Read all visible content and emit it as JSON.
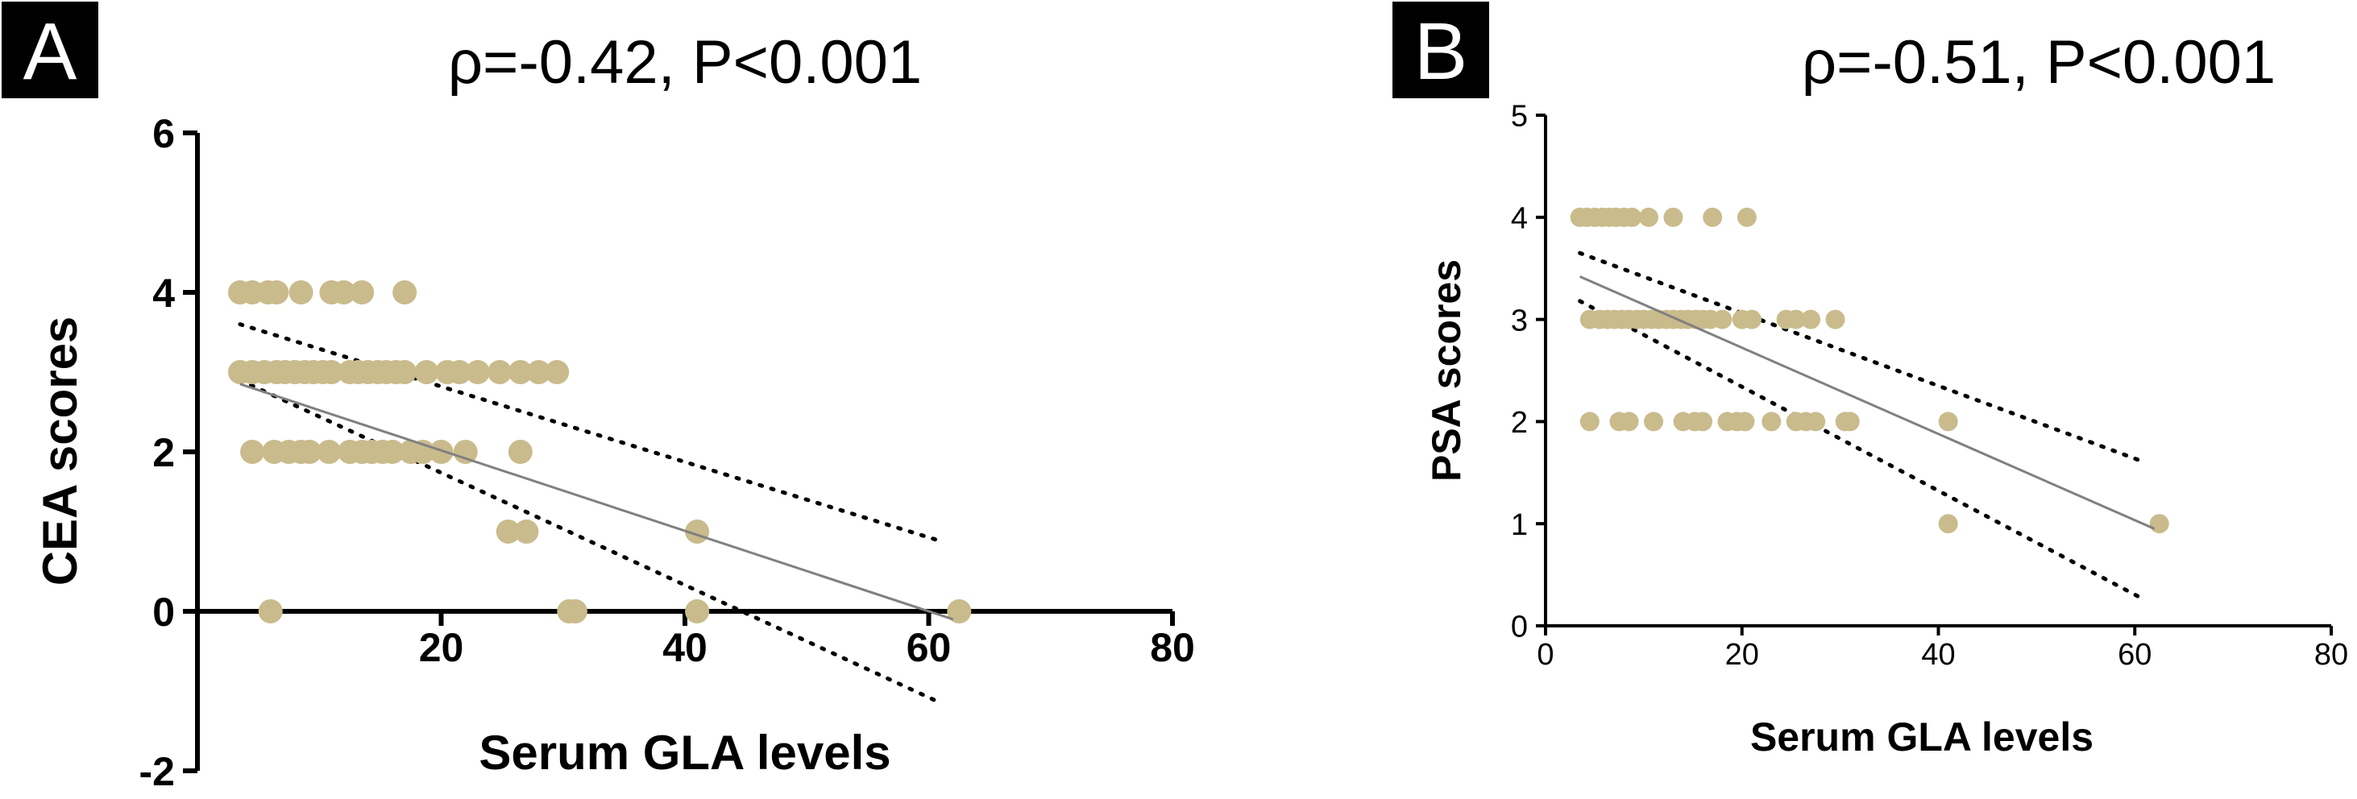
{
  "colors": {
    "point": "#C9BB8C",
    "fit_line": "#808080",
    "ci_line": "#000000",
    "axis": "#000000",
    "panel_label_bg": "#000000",
    "panel_label_text": "#FFFFFF"
  },
  "chart_data": [
    {
      "type": "scatter",
      "panel_label": "A",
      "title": "ρ=-0.42, P<0.001",
      "xlabel": "Serum GLA levels",
      "ylabel": "CEA scores",
      "xlim": [
        0,
        80
      ],
      "ylim": [
        -2,
        6
      ],
      "xticks": [
        20,
        40,
        60,
        80
      ],
      "yticks": [
        -2,
        0,
        2,
        4,
        6
      ],
      "grid": false,
      "legend": "none",
      "points": [
        [
          3.5,
          4
        ],
        [
          4.5,
          4
        ],
        [
          5.8,
          4
        ],
        [
          6.5,
          4
        ],
        [
          8.5,
          4
        ],
        [
          11,
          4
        ],
        [
          12,
          4
        ],
        [
          13.5,
          4
        ],
        [
          17,
          4
        ],
        [
          3.5,
          3
        ],
        [
          4.5,
          3
        ],
        [
          5.5,
          3
        ],
        [
          6.5,
          3
        ],
        [
          7.2,
          3
        ],
        [
          8,
          3
        ],
        [
          8.8,
          3
        ],
        [
          9.5,
          3
        ],
        [
          10.3,
          3
        ],
        [
          11,
          3
        ],
        [
          12.5,
          3
        ],
        [
          13.2,
          3
        ],
        [
          14,
          3
        ],
        [
          14.8,
          3
        ],
        [
          15.5,
          3
        ],
        [
          16.3,
          3
        ],
        [
          17,
          3
        ],
        [
          18.8,
          3
        ],
        [
          20.5,
          3
        ],
        [
          21.5,
          3
        ],
        [
          23,
          3
        ],
        [
          24.8,
          3
        ],
        [
          26.5,
          3
        ],
        [
          28,
          3
        ],
        [
          29.5,
          3
        ],
        [
          4.5,
          2
        ],
        [
          6.3,
          2
        ],
        [
          7.5,
          2
        ],
        [
          8.5,
          2
        ],
        [
          9.2,
          2
        ],
        [
          10.8,
          2
        ],
        [
          12.5,
          2
        ],
        [
          13.5,
          2
        ],
        [
          14.3,
          2
        ],
        [
          15.2,
          2
        ],
        [
          16,
          2
        ],
        [
          17.5,
          2
        ],
        [
          18.5,
          2
        ],
        [
          20,
          2
        ],
        [
          22,
          2
        ],
        [
          26.5,
          2
        ],
        [
          25.5,
          1
        ],
        [
          27,
          1
        ],
        [
          41,
          1
        ],
        [
          6,
          0
        ],
        [
          30.5,
          0
        ],
        [
          31,
          0
        ],
        [
          41,
          0
        ],
        [
          62.5,
          0
        ]
      ],
      "fit_line": {
        "x": [
          3.5,
          62
        ],
        "y": [
          2.85,
          -0.1
        ]
      },
      "ci_upper": {
        "x": [
          3.5,
          61
        ],
        "y": [
          3.6,
          0.88
        ]
      },
      "ci_lower": {
        "x": [
          3.5,
          61
        ],
        "y": [
          2.9,
          -1.15
        ]
      }
    },
    {
      "type": "scatter",
      "panel_label": "B",
      "title": "ρ=-0.51, P<0.001",
      "xlabel": "Serum GLA levels",
      "ylabel": "PSA scores",
      "xlim": [
        0,
        80
      ],
      "ylim": [
        0,
        5
      ],
      "xticks": [
        0,
        20,
        40,
        60,
        80
      ],
      "yticks": [
        0,
        1,
        2,
        3,
        4,
        5
      ],
      "grid": false,
      "legend": "none",
      "points": [
        [
          3.5,
          4
        ],
        [
          4.2,
          4
        ],
        [
          5,
          4
        ],
        [
          5.8,
          4
        ],
        [
          6.5,
          4
        ],
        [
          7.2,
          4
        ],
        [
          8,
          4
        ],
        [
          8.8,
          4
        ],
        [
          10.5,
          4
        ],
        [
          13,
          4
        ],
        [
          17,
          4
        ],
        [
          20.5,
          4
        ],
        [
          4.5,
          3
        ],
        [
          5.5,
          3
        ],
        [
          6.3,
          3
        ],
        [
          7,
          3
        ],
        [
          7.8,
          3
        ],
        [
          8.5,
          3
        ],
        [
          9.3,
          3
        ],
        [
          10,
          3
        ],
        [
          10.8,
          3
        ],
        [
          11.5,
          3
        ],
        [
          12.3,
          3
        ],
        [
          13,
          3
        ],
        [
          13.8,
          3
        ],
        [
          14.5,
          3
        ],
        [
          15.3,
          3
        ],
        [
          16,
          3
        ],
        [
          16.8,
          3
        ],
        [
          18,
          3
        ],
        [
          20,
          3
        ],
        [
          21,
          3
        ],
        [
          24.5,
          3
        ],
        [
          25.5,
          3
        ],
        [
          27,
          3
        ],
        [
          29.5,
          3
        ],
        [
          4.5,
          2
        ],
        [
          7.5,
          2
        ],
        [
          8.5,
          2
        ],
        [
          11,
          2
        ],
        [
          14,
          2
        ],
        [
          15.2,
          2
        ],
        [
          16,
          2
        ],
        [
          18.5,
          2
        ],
        [
          19.5,
          2
        ],
        [
          20.3,
          2
        ],
        [
          23,
          2
        ],
        [
          25.5,
          2
        ],
        [
          26.5,
          2
        ],
        [
          27.5,
          2
        ],
        [
          30.5,
          2
        ],
        [
          31,
          2
        ],
        [
          41,
          2
        ],
        [
          41,
          1
        ],
        [
          62.5,
          1
        ]
      ],
      "fit_line": {
        "x": [
          3.5,
          62
        ],
        "y": [
          3.42,
          0.95
        ]
      },
      "ci_upper": {
        "x": [
          3.5,
          60.5
        ],
        "y": [
          3.65,
          1.62
        ]
      },
      "ci_lower": {
        "x": [
          3.5,
          60.5
        ],
        "y": [
          3.18,
          0.28
        ]
      }
    }
  ]
}
